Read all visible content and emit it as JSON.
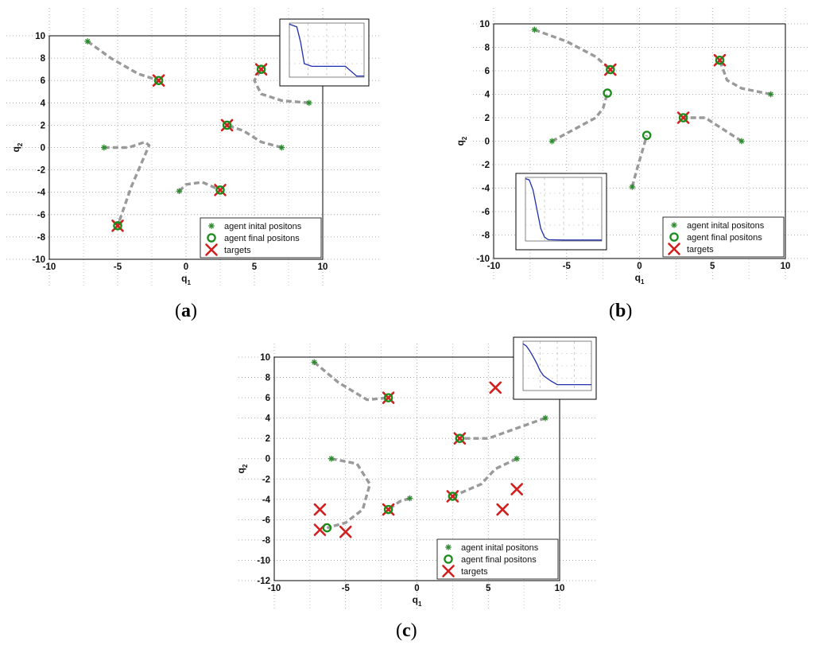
{
  "chart_data": [
    {
      "type": "scatter",
      "panel": "a",
      "caption": "a",
      "xlabel": "q1",
      "ylabel": "q2",
      "xlim": [
        -10,
        10
      ],
      "ylim": [
        -10,
        10
      ],
      "xticks": [
        -10,
        -5,
        0,
        5,
        10
      ],
      "yticks": [
        -10,
        -8,
        -6,
        -4,
        -2,
        0,
        2,
        4,
        6,
        8,
        10
      ],
      "grid": true,
      "legend_position": "bottom-right",
      "legend": [
        "agent inital positons",
        "agent final positons",
        "targets"
      ],
      "series": [
        {
          "name": "agent inital positons",
          "marker": "*",
          "color": "#2e8b2e",
          "x": [
            -7.2,
            -6.0,
            -0.5,
            7.0,
            9.0,
            -4.9
          ],
          "y": [
            9.5,
            0.0,
            -3.9,
            0.0,
            4.0,
            -6.8
          ]
        },
        {
          "name": "agent final positons",
          "marker": "o",
          "color": "#1a8c1a",
          "x": [
            -2.0,
            5.5,
            3.0,
            2.5,
            -5.0
          ],
          "y": [
            6.0,
            7.0,
            2.0,
            -3.8,
            -7.0
          ]
        },
        {
          "name": "targets",
          "marker": "x",
          "color": "#d21f1f",
          "x": [
            -2.0,
            5.5,
            3.0,
            2.5,
            -5.0
          ],
          "y": [
            6.0,
            7.0,
            2.0,
            -3.8,
            -7.0
          ]
        }
      ],
      "trajectories": [
        {
          "x": [
            -7.2,
            -5.5,
            -3.5,
            -2.0
          ],
          "y": [
            9.5,
            8.0,
            6.6,
            6.0
          ]
        },
        {
          "x": [
            9.0,
            7.0,
            5.5,
            5.0,
            5.5
          ],
          "y": [
            4.0,
            4.2,
            4.8,
            6.0,
            7.0
          ]
        },
        {
          "x": [
            7.0,
            5.5,
            4.2,
            3.0
          ],
          "y": [
            0.0,
            0.5,
            1.5,
            2.0
          ]
        },
        {
          "x": [
            -0.5,
            0.0,
            1.2,
            2.5
          ],
          "y": [
            -3.9,
            -3.3,
            -3.1,
            -3.8
          ]
        },
        {
          "x": [
            -6.0,
            -4.2,
            -3.0,
            -2.7,
            -4.0,
            -5.0
          ],
          "y": [
            0.0,
            0.0,
            0.5,
            0.2,
            -3.5,
            -7.0
          ]
        }
      ],
      "inset": {
        "position": "top-right",
        "x": [
          0,
          20,
          30,
          40,
          60,
          90,
          100,
          120,
          150,
          180,
          200
        ],
        "y": [
          9.8,
          9.3,
          6.5,
          2.5,
          2.0,
          2.0,
          2.0,
          2.0,
          2.0,
          0.2,
          0.2
        ],
        "xmax": 200,
        "ymax": 10
      }
    },
    {
      "type": "scatter",
      "panel": "b",
      "caption": "b",
      "xlabel": "q1",
      "ylabel": "q2",
      "xlim": [
        -10,
        10
      ],
      "ylim": [
        -10,
        10
      ],
      "xticks": [
        -10,
        -5,
        0,
        5,
        10
      ],
      "yticks": [
        -10,
        -8,
        -6,
        -4,
        -2,
        0,
        2,
        4,
        6,
        8,
        10
      ],
      "grid": true,
      "legend_position": "bottom-right",
      "legend": [
        "agent inital positons",
        "agent final positons",
        "targets"
      ],
      "series": [
        {
          "name": "agent inital positons",
          "marker": "*",
          "color": "#2e8b2e",
          "x": [
            -7.2,
            -6.0,
            -0.5,
            7.0,
            9.0
          ],
          "y": [
            9.5,
            0.0,
            -3.9,
            0.0,
            4.0
          ]
        },
        {
          "name": "agent final positons",
          "marker": "o",
          "color": "#1a8c1a",
          "x": [
            -2.0,
            -2.2,
            0.5,
            5.5,
            3.0
          ],
          "y": [
            6.1,
            4.1,
            0.5,
            6.9,
            2.0
          ]
        },
        {
          "name": "targets",
          "marker": "x",
          "color": "#d21f1f",
          "x": [
            -2.0,
            5.5,
            3.0
          ],
          "y": [
            6.1,
            6.9,
            2.0
          ]
        }
      ],
      "trajectories": [
        {
          "x": [
            -7.2,
            -5.0,
            -3.0,
            -2.0
          ],
          "y": [
            9.5,
            8.5,
            7.2,
            6.1
          ]
        },
        {
          "x": [
            -6.0,
            -4.5,
            -3.0,
            -2.5,
            -2.2
          ],
          "y": [
            0.0,
            1.0,
            2.0,
            2.8,
            4.1
          ]
        },
        {
          "x": [
            -0.5,
            -0.2,
            0.2,
            0.5
          ],
          "y": [
            -3.9,
            -2.5,
            -0.8,
            0.5
          ]
        },
        {
          "x": [
            7.0,
            5.5,
            4.5,
            3.0
          ],
          "y": [
            0.0,
            1.2,
            2.0,
            2.0
          ]
        },
        {
          "x": [
            9.0,
            7.0,
            6.0,
            5.5
          ],
          "y": [
            4.0,
            4.5,
            5.2,
            6.9
          ]
        }
      ],
      "inset": {
        "position": "bottom-left",
        "x": [
          0,
          5,
          10,
          15,
          20,
          25,
          30,
          50,
          100
        ],
        "y": [
          9.8,
          9.6,
          8.0,
          5.0,
          2.0,
          0.6,
          0.2,
          0.15,
          0.15
        ],
        "xmax": 100,
        "ymax": 10
      }
    },
    {
      "type": "scatter",
      "panel": "c",
      "caption": "c",
      "xlabel": "q1",
      "ylabel": "q2",
      "xlim": [
        -10,
        10
      ],
      "ylim": [
        -12,
        10
      ],
      "xticks": [
        -10,
        -5,
        0,
        5,
        10
      ],
      "yticks": [
        -12,
        -10,
        -8,
        -6,
        -4,
        -2,
        0,
        2,
        4,
        6,
        8,
        10
      ],
      "grid": true,
      "legend_position": "bottom-right",
      "legend": [
        "agent inital positons",
        "agent final positons",
        "targets"
      ],
      "series": [
        {
          "name": "agent inital positons",
          "marker": "*",
          "color": "#2e8b2e",
          "x": [
            -7.2,
            -6.0,
            -0.5,
            7.0,
            9.0
          ],
          "y": [
            9.5,
            0.0,
            -3.9,
            0.0,
            4.0
          ]
        },
        {
          "name": "agent final positons",
          "marker": "o",
          "color": "#1a8c1a",
          "x": [
            -2.0,
            3.0,
            -2.0,
            2.5,
            -6.3
          ],
          "y": [
            6.0,
            2.0,
            -5.0,
            -3.7,
            -6.8
          ]
        },
        {
          "name": "targets",
          "marker": "x",
          "color": "#d21f1f",
          "x": [
            -2.0,
            5.5,
            3.0,
            2.5,
            7.0,
            -2.0,
            6.0,
            -6.8,
            -6.8,
            -5.0
          ],
          "y": [
            6.0,
            7.0,
            2.0,
            -3.7,
            -3.0,
            -5.0,
            -5.0,
            -5.0,
            -7.0,
            -7.2
          ]
        }
      ],
      "trajectories": [
        {
          "x": [
            -7.2,
            -5.5,
            -3.5,
            -2.0
          ],
          "y": [
            9.5,
            7.5,
            5.8,
            6.0
          ]
        },
        {
          "x": [
            9.0,
            7.0,
            5.0,
            3.0
          ],
          "y": [
            4.0,
            3.0,
            2.0,
            2.0
          ]
        },
        {
          "x": [
            7.0,
            5.5,
            4.5,
            2.5
          ],
          "y": [
            0.0,
            -1.0,
            -2.5,
            -3.7
          ]
        },
        {
          "x": [
            -0.5,
            -1.2,
            -2.0
          ],
          "y": [
            -3.9,
            -4.2,
            -5.0
          ]
        },
        {
          "x": [
            -6.0,
            -4.2,
            -3.3,
            -3.8,
            -5.0,
            -6.3
          ],
          "y": [
            0.0,
            -0.5,
            -2.5,
            -5.0,
            -6.3,
            -6.8
          ]
        }
      ],
      "inset": {
        "position": "top-right",
        "x": [
          0,
          10,
          20,
          30,
          40,
          50,
          60,
          80,
          100,
          150,
          200
        ],
        "y": [
          9.5,
          9.0,
          8.0,
          6.8,
          5.5,
          4.0,
          3.0,
          2.0,
          1.2,
          1.2,
          1.2
        ],
        "xmax": 200,
        "ymax": 10
      }
    }
  ]
}
